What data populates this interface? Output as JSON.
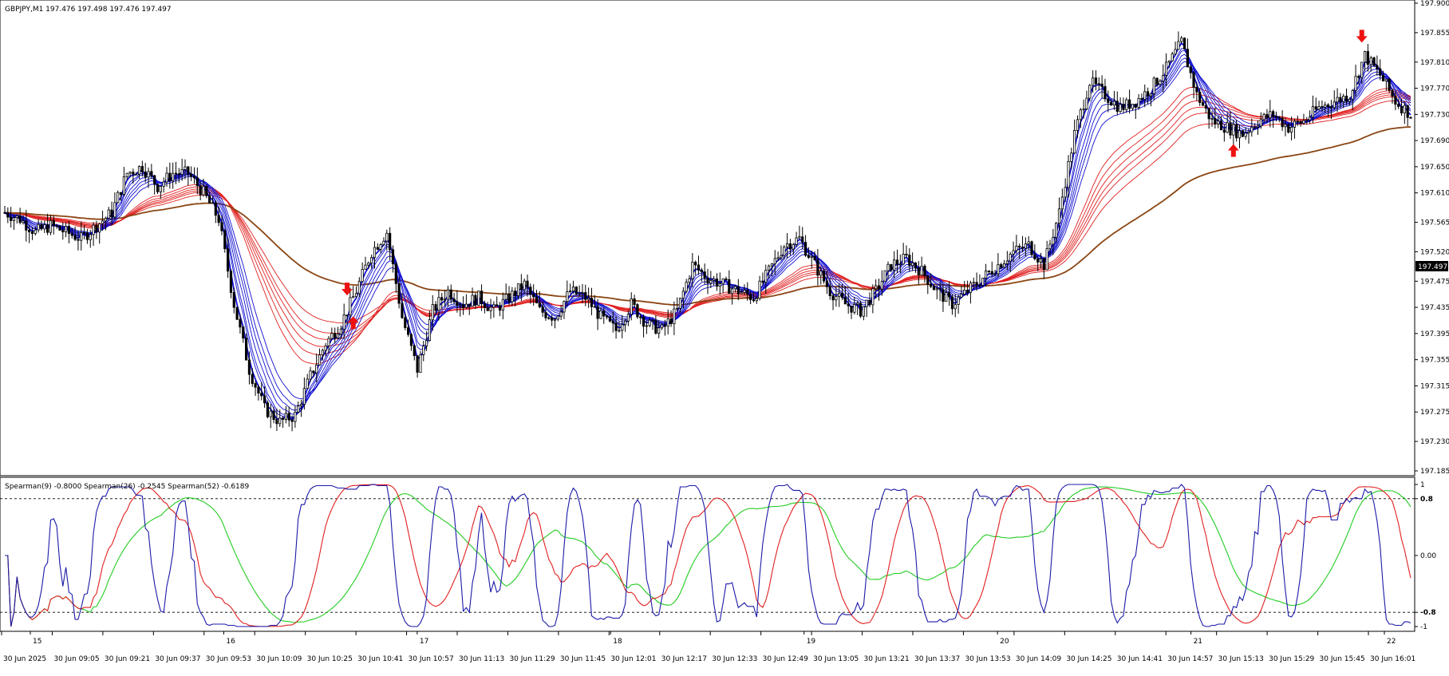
{
  "title": "GBPJPY,M1  197.476 197.498 197.476 197.497",
  "current_price": "197.497",
  "indicator_title": "Spearman(9) -0.8000  Spearman(26) -0.2545  Spearman(52) -0.6189",
  "colors": {
    "bull_candle": "#000000",
    "bear_candle": "#000000",
    "ema_fast": "#1010d0",
    "ema_slow": "#e02020",
    "ema_long": "#8b4513",
    "arrow": "#ee1111",
    "spearman9": "#1a1aa8",
    "spearman26": "#e02020",
    "spearman52": "#22cc22",
    "price_tag_bg": "#000000"
  },
  "chart_data": [
    {
      "type": "candlestick",
      "symbol": "GBPJPY",
      "timeframe": "M1",
      "ylim": [
        197.185,
        197.9
      ],
      "yticks": [
        "197.900",
        "197.855",
        "197.810",
        "197.770",
        "197.730",
        "197.690",
        "197.650",
        "197.610",
        "197.565",
        "197.520",
        "197.475",
        "197.435",
        "197.395",
        "197.355",
        "197.315",
        "197.275",
        "197.230",
        "197.185"
      ],
      "xticks": [
        "30 Jun 2025",
        "30 Jun 09:05",
        "30 Jun 09:21",
        "30 Jun 09:37",
        "30 Jun 09:53",
        "30 Jun 10:09",
        "30 Jun 10:25",
        "30 Jun 10:41",
        "30 Jun 10:57",
        "30 Jun 11:13",
        "30 Jun 11:29",
        "30 Jun 11:45",
        "30 Jun 12:01",
        "30 Jun 12:17",
        "30 Jun 12:33",
        "30 Jun 12:49",
        "30 Jun 13:05",
        "30 Jun 13:21",
        "30 Jun 13:37",
        "30 Jun 13:53",
        "30 Jun 14:09",
        "30 Jun 14:25",
        "30 Jun 14:41",
        "30 Jun 14:57",
        "30 Jun 15:13",
        "30 Jun 15:29",
        "30 Jun 15:45",
        "30 Jun 16:01"
      ],
      "day_ticks": [
        "15",
        "16",
        "17",
        "18",
        "19",
        "20",
        "21",
        "22"
      ],
      "price_path": [
        [
          0,
          197.58
        ],
        [
          5,
          197.57
        ],
        [
          10,
          197.55
        ],
        [
          15,
          197.56
        ],
        [
          20,
          197.55
        ],
        [
          25,
          197.54
        ],
        [
          30,
          197.56
        ],
        [
          35,
          197.58
        ],
        [
          40,
          197.64
        ],
        [
          45,
          197.65
        ],
        [
          50,
          197.62
        ],
        [
          55,
          197.64
        ],
        [
          60,
          197.64
        ],
        [
          65,
          197.61
        ],
        [
          70,
          197.57
        ],
        [
          75,
          197.44
        ],
        [
          80,
          197.34
        ],
        [
          85,
          197.28
        ],
        [
          90,
          197.26
        ],
        [
          95,
          197.27
        ],
        [
          100,
          197.33
        ],
        [
          105,
          197.38
        ],
        [
          110,
          197.41
        ],
        [
          115,
          197.46
        ],
        [
          120,
          197.52
        ],
        [
          125,
          197.55
        ],
        [
          130,
          197.42
        ],
        [
          135,
          197.34
        ],
        [
          140,
          197.43
        ],
        [
          145,
          197.46
        ],
        [
          150,
          197.44
        ],
        [
          155,
          197.45
        ],
        [
          160,
          197.43
        ],
        [
          165,
          197.45
        ],
        [
          170,
          197.47
        ],
        [
          175,
          197.43
        ],
        [
          180,
          197.42
        ],
        [
          185,
          197.46
        ],
        [
          190,
          197.45
        ],
        [
          195,
          197.42
        ],
        [
          200,
          197.4
        ],
        [
          205,
          197.44
        ],
        [
          210,
          197.41
        ],
        [
          215,
          197.4
        ],
        [
          220,
          197.43
        ],
        [
          225,
          197.5
        ],
        [
          230,
          197.48
        ],
        [
          235,
          197.47
        ],
        [
          240,
          197.46
        ],
        [
          245,
          197.45
        ],
        [
          250,
          197.49
        ],
        [
          255,
          197.53
        ],
        [
          260,
          197.54
        ],
        [
          265,
          197.5
        ],
        [
          270,
          197.46
        ],
        [
          275,
          197.44
        ],
        [
          280,
          197.43
        ],
        [
          285,
          197.46
        ],
        [
          290,
          197.5
        ],
        [
          295,
          197.51
        ],
        [
          300,
          197.49
        ],
        [
          305,
          197.46
        ],
        [
          310,
          197.44
        ],
        [
          315,
          197.46
        ],
        [
          320,
          197.48
        ],
        [
          325,
          197.5
        ],
        [
          330,
          197.52
        ],
        [
          335,
          197.53
        ],
        [
          340,
          197.5
        ],
        [
          345,
          197.58
        ],
        [
          350,
          197.7
        ],
        [
          355,
          197.78
        ],
        [
          360,
          197.76
        ],
        [
          365,
          197.74
        ],
        [
          370,
          197.75
        ],
        [
          375,
          197.77
        ],
        [
          380,
          197.8
        ],
        [
          385,
          197.84
        ],
        [
          390,
          197.76
        ],
        [
          395,
          197.72
        ],
        [
          400,
          197.71
        ],
        [
          405,
          197.7
        ],
        [
          410,
          197.72
        ],
        [
          415,
          197.73
        ],
        [
          420,
          197.71
        ],
        [
          425,
          197.72
        ],
        [
          430,
          197.74
        ],
        [
          435,
          197.75
        ],
        [
          440,
          197.76
        ],
        [
          445,
          197.82
        ],
        [
          450,
          197.79
        ],
        [
          455,
          197.75
        ],
        [
          460,
          197.73
        ]
      ]
    },
    {
      "type": "line",
      "name": "Spearman",
      "ylim": [
        -1,
        1
      ],
      "yticks": [
        "1",
        "0.8",
        "0.00",
        "-0.8",
        "-1"
      ],
      "levels": [
        0.8,
        -0.8
      ],
      "series": [
        {
          "name": "Spearman(9)",
          "value": -0.8
        },
        {
          "name": "Spearman(26)",
          "value": -0.2545
        },
        {
          "name": "Spearman(52)",
          "value": -0.6189
        }
      ]
    }
  ]
}
